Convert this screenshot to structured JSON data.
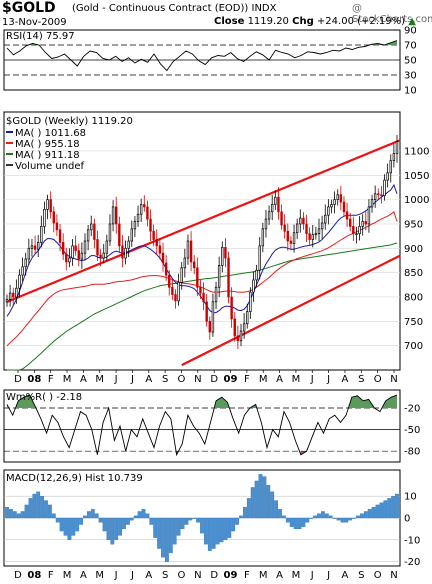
{
  "header": {
    "symbol": "$GOLD",
    "description": "(Gold - Continuous Contract (EOD))",
    "exchange": "INDX",
    "watermark": "@ StockCharts.com",
    "date": "13-Nov-2009",
    "close_label": "Close",
    "close_value": "1119.20",
    "chg_label": "Chg",
    "chg_value": "+24.00 (+2.19%)",
    "chg_icon": "up-triangle-icon"
  },
  "colors": {
    "price_up": "#000000",
    "price_down": "#cc0000",
    "ma_blue": "#1a1aa8",
    "ma_red": "#e02020",
    "ma_green": "#1a7a1a",
    "channel": "#ee1111",
    "macd_hist": "#4a90d0",
    "osc_fill": "#5a9a5a",
    "osc_fill_low": "#b06060"
  },
  "chart_data": [
    {
      "type": "line",
      "panel": "rsi",
      "title": "RSI(14) 75.97",
      "ylim": [
        10,
        90
      ],
      "y_ticks": [
        90,
        70,
        50,
        30,
        10
      ],
      "reference_lines": [
        70,
        50,
        30
      ],
      "fill_above": 70,
      "series": [
        {
          "values": [
            66,
            57,
            62,
            69,
            72,
            70,
            60,
            52,
            54,
            58,
            50,
            42,
            55,
            62,
            60,
            52,
            50,
            55,
            48,
            53,
            46,
            51,
            47,
            58,
            45,
            36,
            48,
            55,
            62,
            58,
            49,
            44,
            53,
            56,
            55,
            60,
            52,
            48,
            55,
            61,
            57,
            50,
            63,
            60,
            58,
            53,
            56,
            61,
            60,
            58,
            60,
            63,
            62,
            66,
            64,
            67,
            68,
            71,
            72,
            70,
            73,
            76
          ]
        }
      ]
    },
    {
      "type": "line",
      "panel": "price",
      "title": "$GOLD (Weekly) 1119.20",
      "legend": [
        {
          "label": "MA(  ) 1011.68",
          "color": "#1a1aa8"
        },
        {
          "label": "MA(  ) 955.18",
          "color": "#e02020"
        },
        {
          "label": "MA(  ) 911.18",
          "color": "#1a7a1a"
        },
        {
          "label": "Volume undef",
          "color": "#333333"
        }
      ],
      "ylim": [
        650,
        1180
      ],
      "y_ticks": [
        700,
        750,
        800,
        850,
        900,
        950,
        1000,
        1050,
        1100
      ],
      "x_labels": [
        "D",
        "08",
        "F",
        "M",
        "A",
        "M",
        "J",
        "J",
        "A",
        "S",
        "O",
        "N",
        "D",
        "09",
        "F",
        "M",
        "A",
        "M",
        "J",
        "J",
        "A",
        "S",
        "O",
        "N"
      ],
      "bars_close": [
        795,
        808,
        800,
        818,
        845,
        862,
        878,
        900,
        905,
        898,
        912,
        945,
        980,
        1000,
        975,
        952,
        938,
        912,
        888,
        872,
        880,
        905,
        895,
        878,
        890,
        915,
        938,
        950,
        918,
        886,
        880,
        890,
        915,
        950,
        985,
        950,
        905,
        880,
        900,
        915,
        940,
        955,
        970,
        990,
        985,
        960,
        935,
        918,
        905,
        890,
        870,
        845,
        820,
        805,
        792,
        830,
        860,
        880,
        915,
        872,
        860,
        820,
        808,
        790,
        750,
        728,
        790,
        820,
        865,
        902,
        880,
        800,
        755,
        720,
        710,
        730,
        745,
        770,
        810,
        835,
        855,
        905,
        940,
        960,
        975,
        990,
        1005,
        975,
        948,
        935,
        915,
        910,
        932,
        950,
        962,
        950,
        930,
        918,
        928,
        930,
        940,
        952,
        968,
        985,
        990,
        1000,
        1010,
        995,
        975,
        960,
        945,
        930,
        930,
        945,
        955,
        950,
        985,
        1000,
        1012,
        1010,
        1008,
        1040,
        1055,
        1080,
        1095,
        1119
      ],
      "ma_short": [
        760,
        770,
        782,
        795,
        812,
        830,
        850,
        868,
        880,
        888,
        895,
        905,
        915,
        920,
        920,
        918,
        912,
        905,
        895,
        888,
        883,
        880,
        878,
        876,
        875,
        876,
        880,
        885,
        885,
        882,
        880,
        880,
        882,
        887,
        892,
        894,
        892,
        890,
        890,
        893,
        897,
        900,
        903,
        905,
        905,
        902,
        898,
        893,
        887,
        880,
        870,
        858,
        848,
        838,
        830,
        825,
        823,
        823,
        822,
        820,
        817,
        810,
        802,
        792,
        782,
        772,
        768,
        768,
        772,
        778,
        781,
        781,
        780,
        777,
        773,
        772,
        775,
        782,
        795,
        810,
        825,
        840,
        855,
        868,
        878,
        888,
        896,
        900,
        902,
        902,
        900,
        898,
        898,
        900,
        902,
        904,
        905,
        906,
        908,
        910,
        913,
        918,
        925,
        932,
        940,
        948,
        956,
        962,
        966,
        968,
        968,
        968,
        968,
        970,
        973,
        977,
        982,
        988,
        995,
        1000,
        1005,
        1010,
        1015,
        1020,
        1030,
        1012
      ],
      "ma_mid": [
        700,
        706,
        712,
        718,
        725,
        732,
        740,
        748,
        756,
        764,
        771,
        779,
        787,
        795,
        801,
        806,
        810,
        813,
        815,
        816,
        817,
        818,
        819,
        820,
        821,
        822,
        823,
        825,
        826,
        826,
        826,
        826,
        827,
        828,
        830,
        831,
        832,
        832,
        833,
        834,
        835,
        837,
        839,
        841,
        842,
        843,
        844,
        844,
        844,
        843,
        842,
        840,
        838,
        836,
        833,
        831,
        829,
        828,
        827,
        826,
        825,
        823,
        821,
        818,
        815,
        812,
        810,
        810,
        810,
        811,
        812,
        812,
        812,
        811,
        810,
        810,
        810,
        811,
        813,
        816,
        820,
        825,
        830,
        835,
        840,
        846,
        852,
        857,
        862,
        866,
        870,
        873,
        876,
        879,
        881,
        883,
        885,
        887,
        889,
        891,
        893,
        895,
        898,
        901,
        905,
        909,
        913,
        917,
        921,
        925,
        928,
        931,
        934,
        937,
        940,
        943,
        946,
        950,
        953,
        957,
        960,
        963,
        966,
        970,
        975,
        955
      ],
      "ma_long": [
        630,
        634,
        638,
        642,
        647,
        652,
        657,
        662,
        668,
        673,
        679,
        685,
        691,
        697,
        703,
        709,
        714,
        719,
        724,
        729,
        733,
        737,
        741,
        745,
        749,
        753,
        757,
        761,
        765,
        768,
        771,
        774,
        777,
        780,
        783,
        786,
        789,
        792,
        795,
        798,
        801,
        804,
        807,
        810,
        813,
        815,
        817,
        819,
        821,
        823,
        824,
        825,
        826,
        827,
        828,
        829,
        830,
        831,
        832,
        833,
        834,
        835,
        836,
        837,
        838,
        838,
        839,
        840,
        841,
        842,
        843,
        844,
        845,
        846,
        847,
        848,
        849,
        850,
        851,
        852,
        853,
        855,
        857,
        859,
        861,
        863,
        865,
        867,
        869,
        871,
        873,
        875,
        876,
        877,
        878,
        879,
        880,
        881,
        882,
        883,
        884,
        885,
        886,
        887,
        888,
        889,
        890,
        891,
        892,
        893,
        894,
        895,
        896,
        897,
        898,
        899,
        900,
        901,
        902,
        903,
        904,
        905,
        906,
        907,
        909,
        911
      ],
      "channel_upper": [
        [
          0,
          790
        ],
        [
          126,
          1122
        ]
      ],
      "channel_lower": [
        [
          56,
          660
        ],
        [
          126,
          885
        ]
      ]
    },
    {
      "type": "line",
      "panel": "willr",
      "title": "Wm%R(  ) -2.18",
      "ylim": [
        -95,
        5
      ],
      "y_ticks": [
        -20,
        -50,
        -80
      ],
      "reference_lines": [
        -20,
        -50,
        -80
      ],
      "series": [
        {
          "values": [
            -15,
            -30,
            -10,
            -5,
            -2,
            -18,
            -35,
            -55,
            -30,
            -40,
            -60,
            -75,
            -50,
            -25,
            -30,
            -50,
            -85,
            -40,
            -20,
            -65,
            -45,
            -80,
            -50,
            -60,
            -35,
            -55,
            -75,
            -45,
            -25,
            -35,
            -85,
            -70,
            -30,
            -45,
            -55,
            -70,
            -40,
            -10,
            -5,
            -12,
            -35,
            -55,
            -30,
            -20,
            -15,
            -40,
            -75,
            -50,
            -60,
            -25,
            -40,
            -65,
            -85,
            -80,
            -60,
            -40,
            -55,
            -35,
            -30,
            -40,
            -30,
            -5,
            -3,
            -10,
            -8,
            -20,
            -25,
            -10,
            -5,
            -2
          ]
        }
      ]
    },
    {
      "type": "bar",
      "panel": "macd",
      "title": "MACD(12,26,9) Hist 10.739",
      "ylim": [
        -22,
        22
      ],
      "y_ticks": [
        10,
        0,
        -10,
        -20
      ],
      "values": [
        5,
        4,
        3,
        2,
        3,
        6,
        9,
        11,
        12,
        10,
        8,
        6,
        2,
        -2,
        -6,
        -8,
        -10,
        -8,
        -6,
        -3,
        1,
        3,
        4,
        2,
        -2,
        -6,
        -10,
        -12,
        -10,
        -8,
        -5,
        -3,
        -1,
        1,
        3,
        4,
        2,
        -3,
        -9,
        -14,
        -18,
        -20,
        -16,
        -12,
        -8,
        -5,
        -3,
        -1,
        0,
        -2,
        -7,
        -12,
        -15,
        -14,
        -12,
        -11,
        -10,
        -9,
        -6,
        -3,
        1,
        5,
        9,
        14,
        17,
        20,
        19,
        15,
        12,
        8,
        4,
        1,
        -2,
        -4,
        -5,
        -5,
        -4,
        -2,
        0,
        1,
        2,
        3,
        2,
        1,
        0,
        -1,
        -2,
        -2,
        -1,
        0,
        1,
        2,
        3,
        4,
        5,
        6,
        7,
        8,
        9,
        10,
        11
      ]
    }
  ]
}
